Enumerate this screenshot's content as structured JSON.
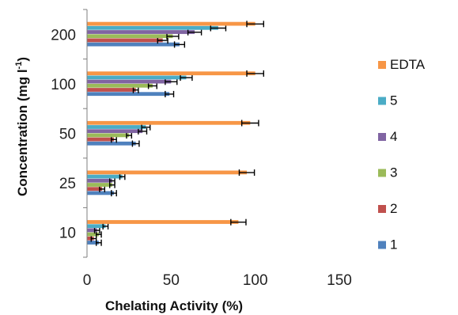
{
  "chart_data": {
    "type": "bar",
    "orientation": "horizontal",
    "xlabel": "Chelating Activity (%)",
    "ylabel_main": "Concentration (mg l",
    "ylabel_sup": "-1",
    "ylabel_end": ")",
    "xlim": [
      0,
      150
    ],
    "xticks": [
      "0",
      "50",
      "100",
      "150"
    ],
    "grid": false,
    "legend_position": "right",
    "categories": [
      "10",
      "25",
      "50",
      "100",
      "200"
    ],
    "series": [
      {
        "name": "1",
        "color": "#4f81bd",
        "values": [
          7,
          16,
          29,
          49,
          55
        ],
        "errors": [
          1.5,
          1.5,
          2,
          2.5,
          3
        ]
      },
      {
        "name": "2",
        "color": "#c0504d",
        "values": [
          4,
          9,
          16,
          29,
          45
        ],
        "errors": [
          1.5,
          1.5,
          1.5,
          1.5,
          3
        ]
      },
      {
        "name": "3",
        "color": "#9bbb59",
        "values": [
          7,
          15,
          25,
          39,
          51
        ],
        "errors": [
          1.5,
          1.5,
          1.5,
          2.5,
          3.5
        ]
      },
      {
        "name": "4",
        "color": "#8064a2",
        "values": [
          6,
          15,
          33,
          50,
          64
        ],
        "errors": [
          1.5,
          1.5,
          2.5,
          3.5,
          4
        ]
      },
      {
        "name": "5",
        "color": "#4bacc6",
        "values": [
          11,
          21,
          35,
          59,
          78
        ],
        "errors": [
          1.5,
          1.5,
          2.5,
          3.5,
          4.5
        ]
      },
      {
        "name": "EDTA",
        "color": "#f79646",
        "values": [
          90,
          95,
          97,
          100,
          100
        ],
        "errors": [
          4.5,
          4.5,
          5,
          5,
          5
        ]
      }
    ]
  }
}
